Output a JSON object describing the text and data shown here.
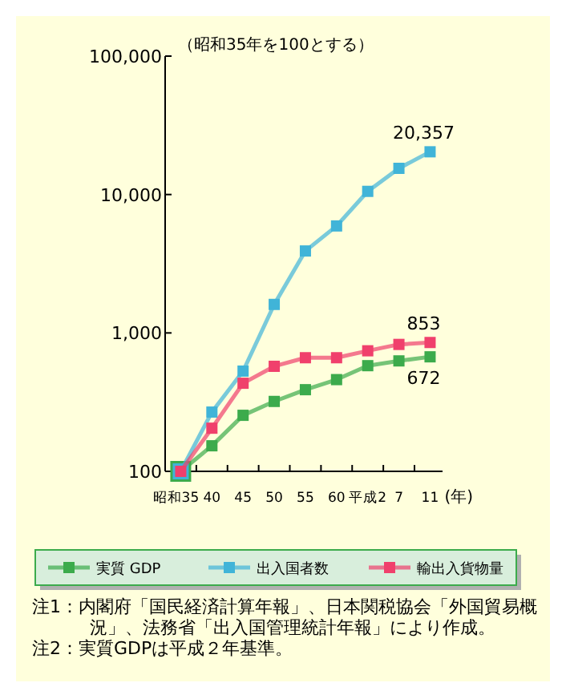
{
  "chart_data": {
    "type": "line",
    "ylabel": "（昭和35年を100とする）",
    "xlabel": "(年)",
    "categories": [
      "昭和35",
      "40",
      "45",
      "50",
      "55",
      "60",
      "平成2",
      "7",
      "11"
    ],
    "log": "y",
    "ylim": [
      100,
      100000
    ],
    "yticks": [
      100,
      {
        "value": 1000,
        "label": "1,000"
      },
      {
        "value": 10000,
        "label": "10,000"
      },
      {
        "value": 100000,
        "label": "100,000"
      }
    ],
    "marker": "square",
    "legend": "bottom",
    "series": [
      {
        "name": "実質 GDP",
        "color": "#3cab4c",
        "values": [
          100,
          153,
          254,
          320,
          389,
          460,
          580,
          628,
          672
        ],
        "value_labels": [
          null,
          null,
          null,
          null,
          null,
          null,
          null,
          null,
          "672"
        ]
      },
      {
        "name": "出入国者数",
        "color": "#40b4d8",
        "values": [
          100,
          268,
          530,
          1607,
          3910,
          5930,
          10540,
          15460,
          20357
        ],
        "value_labels": [
          null,
          null,
          null,
          null,
          null,
          null,
          null,
          null,
          "20,357"
        ]
      },
      {
        "name": "輸出入貨物量",
        "color": "#f0406c",
        "values": [
          100,
          205,
          433,
          574,
          662,
          662,
          743,
          826,
          853
        ],
        "value_labels": [
          null,
          null,
          null,
          null,
          null,
          null,
          null,
          null,
          "853"
        ]
      }
    ],
    "annotations": [
      "注1：内閣府「国民経済計算年報」、日本関税協会「外国貿易概況」、法務省「出入国管理統計年報」により作成。",
      "注2：実質GDPは平成２年基準。"
    ]
  }
}
